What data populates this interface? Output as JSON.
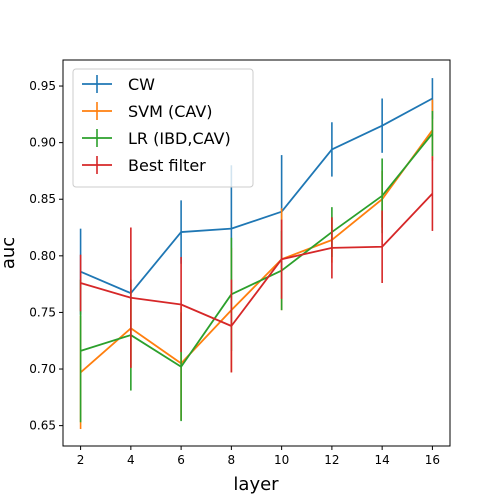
{
  "chart_data": {
    "type": "line",
    "title": "",
    "xlabel": "layer",
    "ylabel": "auc",
    "x": [
      2,
      4,
      6,
      8,
      10,
      12,
      14,
      16
    ],
    "xlim": [
      1.3,
      16.7
    ],
    "ylim": [
      0.632,
      0.973
    ],
    "xticks": [
      2,
      4,
      6,
      8,
      10,
      12,
      14,
      16
    ],
    "yticks": [
      0.65,
      0.7,
      0.75,
      0.8,
      0.85,
      0.9,
      0.95
    ],
    "grid": false,
    "legend_position": "top-left",
    "error_bars": true,
    "series": [
      {
        "name": "CW",
        "color": "#1f77b4",
        "values": [
          0.786,
          0.767,
          0.821,
          0.824,
          0.839,
          0.894,
          0.915,
          0.939
        ],
        "errors": [
          0.038,
          0.0,
          0.028,
          0.056,
          0.05,
          0.024,
          0.024,
          0.018
        ]
      },
      {
        "name": "SVM (CAV)",
        "color": "#ff7f0e",
        "values": [
          0.697,
          0.736,
          0.705,
          0.752,
          0.797,
          0.814,
          0.85,
          0.911
        ],
        "errors": [
          0.05,
          0.035,
          0.05,
          0.055,
          0.045,
          0.02,
          0.025,
          0.027
        ]
      },
      {
        "name": "LR (IBD,CAV)",
        "color": "#2ca02c",
        "values": [
          0.716,
          0.73,
          0.702,
          0.766,
          0.787,
          0.821,
          0.853,
          0.908
        ],
        "errors": [
          0.063,
          0.049,
          0.048,
          0.05,
          0.035,
          0.022,
          0.033,
          0.02
        ]
      },
      {
        "name": "Best filter",
        "color": "#d62728",
        "values": [
          0.776,
          0.763,
          0.757,
          0.738,
          0.797,
          0.807,
          0.808,
          0.855
        ],
        "errors": [
          0.025,
          0.062,
          0.042,
          0.041,
          0.035,
          0.027,
          0.032,
          0.033
        ]
      }
    ]
  }
}
